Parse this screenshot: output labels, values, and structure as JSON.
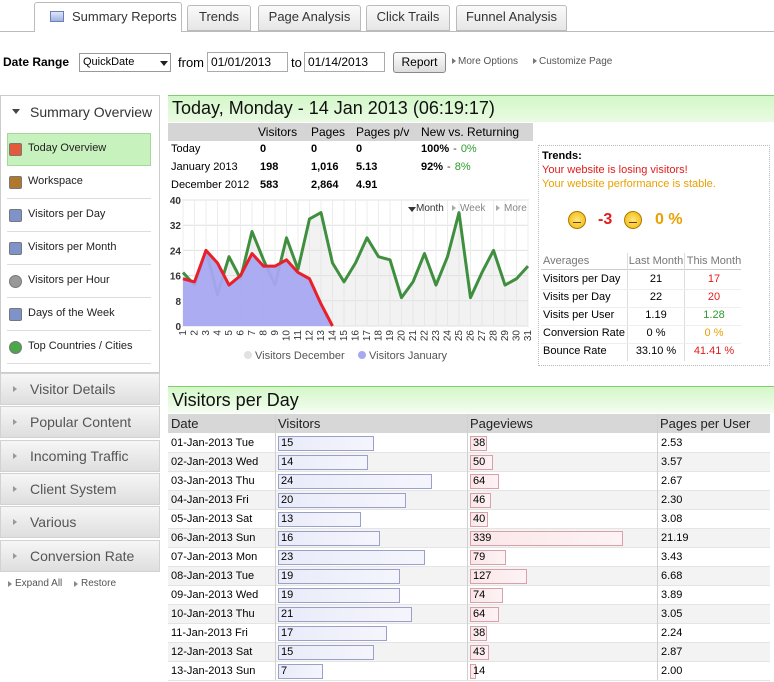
{
  "tabs": [
    "Summary Reports",
    "Trends",
    "Page Analysis",
    "Click Trails",
    "Funnel Analysis"
  ],
  "toolbar": {
    "date_range_label": "Date Range",
    "quick_date": "QuickDate",
    "from_label": "from",
    "from": "01/01/2013",
    "to_label": "to",
    "to": "01/14/2013",
    "report_button": "Report",
    "more_options": "More Options",
    "customize_page": "Customize Page"
  },
  "sidebar": {
    "title": "Summary Overview",
    "items": [
      "Today Overview",
      "Workspace",
      "Visitors per Day",
      "Visitors per Month",
      "Visitors per Hour",
      "Days of the Week",
      "Top Countries / Cities"
    ],
    "sections": [
      "Visitor Details",
      "Popular Content",
      "Incoming Traffic",
      "Client System",
      "Various",
      "Conversion Rate"
    ],
    "expand_all": "Expand All",
    "restore": "Restore"
  },
  "today": {
    "title": "Today, Monday - 14 Jan 2013 (06:19:17)",
    "columns": [
      "Visitors",
      "Pages",
      "Pages p/v",
      "New vs. Returning"
    ],
    "separator": "-",
    "rows": [
      [
        "Today",
        "0",
        "0",
        "0",
        "100%",
        "0%"
      ],
      [
        "January 2013",
        "198",
        "1,016",
        "5.13",
        "92%",
        "8%"
      ],
      [
        "December 2012",
        "583",
        "2,864",
        "4.91",
        "",
        ""
      ]
    ]
  },
  "chart_controls": [
    "Month",
    "Week",
    "More"
  ],
  "chart_data": {
    "type": "line",
    "x": [
      1,
      2,
      3,
      4,
      5,
      6,
      7,
      8,
      9,
      10,
      11,
      12,
      13,
      14,
      15,
      16,
      17,
      18,
      19,
      20,
      21,
      22,
      23,
      24,
      25,
      26,
      27,
      28,
      29,
      30,
      31
    ],
    "xlim": [
      1,
      31
    ],
    "ylim": [
      0,
      40
    ],
    "yticks": [
      0,
      8,
      16,
      24,
      32,
      40
    ],
    "grid": true,
    "series": [
      {
        "name": "Visitors December",
        "color": "#3f8f3f",
        "fill": "#e2e2e2",
        "values": [
          17,
          13,
          24,
          10,
          22,
          15,
          30,
          21,
          13,
          28,
          18,
          34,
          36,
          20,
          14,
          20,
          28,
          22,
          21,
          9,
          14,
          23,
          13,
          22,
          36,
          9,
          17,
          24,
          13,
          15,
          19
        ]
      },
      {
        "name": "Visitors January",
        "color": "#e8202a",
        "fill": "#a8a8f2",
        "values": [
          15,
          14,
          24,
          20,
          13,
          16,
          23,
          19,
          19,
          21,
          17,
          15,
          7,
          0,
          null,
          null,
          null,
          null,
          null,
          null,
          null,
          null,
          null,
          null,
          null,
          null,
          null,
          null,
          null,
          null,
          null
        ]
      }
    ]
  },
  "trends": {
    "title": "Trends:",
    "messages": [
      "Your website is losing visitors!",
      "Your website performance is stable."
    ],
    "visitor_change": "-3",
    "performance_change": "0 %",
    "columns": [
      "Averages",
      "Last Month",
      "This Month"
    ],
    "rows": [
      [
        "Visitors per Day",
        "21",
        "17"
      ],
      [
        "Visits per Day",
        "22",
        "20"
      ],
      [
        "Visits per User",
        "1.19",
        "1.28"
      ],
      [
        "Conversion Rate",
        "0 %",
        "0 %"
      ],
      [
        "Bounce Rate",
        "33.10 %",
        "41.41 %"
      ]
    ]
  },
  "visitors_per_day": {
    "title": "Visitors per Day",
    "columns": [
      "Date",
      "Visitors",
      "Pageviews",
      "Pages per User"
    ],
    "rows": [
      {
        "date": "01-Jan-2013 Tue",
        "visitors": 15,
        "pageviews": 38,
        "pages_per_user": "2.53"
      },
      {
        "date": "02-Jan-2013 Wed",
        "visitors": 14,
        "pageviews": 50,
        "pages_per_user": "3.57"
      },
      {
        "date": "03-Jan-2013 Thu",
        "visitors": 24,
        "pageviews": 64,
        "pages_per_user": "2.67"
      },
      {
        "date": "04-Jan-2013 Fri",
        "visitors": 20,
        "pageviews": 46,
        "pages_per_user": "2.30"
      },
      {
        "date": "05-Jan-2013 Sat",
        "visitors": 13,
        "pageviews": 40,
        "pages_per_user": "3.08"
      },
      {
        "date": "06-Jan-2013 Sun",
        "visitors": 16,
        "pageviews": 339,
        "pages_per_user": "21.19"
      },
      {
        "date": "07-Jan-2013 Mon",
        "visitors": 23,
        "pageviews": 79,
        "pages_per_user": "3.43"
      },
      {
        "date": "08-Jan-2013 Tue",
        "visitors": 19,
        "pageviews": 127,
        "pages_per_user": "6.68"
      },
      {
        "date": "09-Jan-2013 Wed",
        "visitors": 19,
        "pageviews": 74,
        "pages_per_user": "3.89"
      },
      {
        "date": "10-Jan-2013 Thu",
        "visitors": 21,
        "pageviews": 64,
        "pages_per_user": "3.05"
      },
      {
        "date": "11-Jan-2013 Fri",
        "visitors": 17,
        "pageviews": 38,
        "pages_per_user": "2.24"
      },
      {
        "date": "12-Jan-2013 Sat",
        "visitors": 15,
        "pageviews": 43,
        "pages_per_user": "2.87"
      },
      {
        "date": "13-Jan-2013 Sun",
        "visitors": 7,
        "pageviews": 14,
        "pages_per_user": "2.00"
      }
    ]
  }
}
